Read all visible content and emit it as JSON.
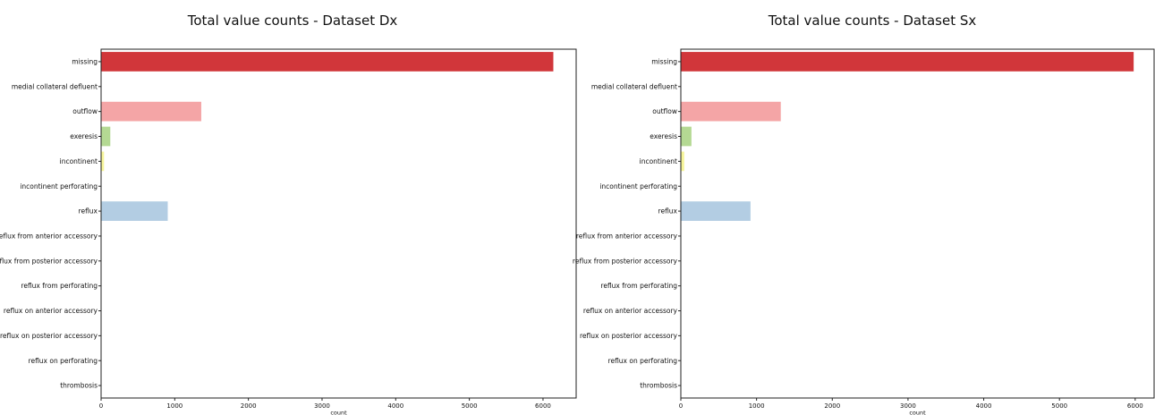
{
  "chart_data": [
    {
      "type": "bar",
      "orientation": "horizontal",
      "title": "Total value counts - Dataset Dx",
      "xlabel": "count",
      "ylabel": "",
      "xlim": [
        0,
        6450
      ],
      "x_ticks": [
        0,
        1000,
        2000,
        3000,
        4000,
        5000,
        6000
      ],
      "categories": [
        "missing",
        "medial collateral defluent",
        "outflow",
        "exeresis",
        "incontinent",
        "incontinent perforating",
        "reflux",
        "reflux from anterior accessory",
        "reflux from posterior accessory",
        "reflux from perforating",
        "reflux on anterior accessory",
        "reflux on posterior accessory",
        "reflux on perforating",
        "thrombosis"
      ],
      "values": [
        6140,
        0,
        1360,
        125,
        40,
        0,
        905,
        0,
        0,
        0,
        0,
        0,
        0,
        0
      ],
      "colors": [
        "#d1363a",
        "#f4a5a6",
        "#f4a5a6",
        "#b4d993",
        "#f7f59a",
        "#b3cde3",
        "#b3cde3",
        "#b3cde3",
        "#b3cde3",
        "#b3cde3",
        "#b3cde3",
        "#b3cde3",
        "#b3cde3",
        "#b3cde3"
      ],
      "grid": false
    },
    {
      "type": "bar",
      "orientation": "horizontal",
      "title": "Total value counts - Dataset Sx",
      "xlabel": "count",
      "ylabel": "",
      "xlim": [
        0,
        6250
      ],
      "x_ticks": [
        0,
        1000,
        2000,
        3000,
        4000,
        5000,
        6000
      ],
      "categories": [
        "missing",
        "medial collateral defluent",
        "outflow",
        "exeresis",
        "incontinent",
        "incontinent perforating",
        "reflux",
        "reflux from anterior accessory",
        "reflux from posterior accessory",
        "reflux from perforating",
        "reflux on anterior accessory",
        "reflux on posterior accessory",
        "reflux on perforating",
        "thrombosis"
      ],
      "values": [
        5980,
        0,
        1320,
        140,
        45,
        0,
        920,
        0,
        0,
        0,
        0,
        0,
        0,
        0
      ],
      "colors": [
        "#d1363a",
        "#f4a5a6",
        "#f4a5a6",
        "#b4d993",
        "#f7f59a",
        "#b3cde3",
        "#b3cde3",
        "#b3cde3",
        "#b3cde3",
        "#b3cde3",
        "#b3cde3",
        "#b3cde3",
        "#b3cde3",
        "#b3cde3"
      ],
      "grid": false
    }
  ]
}
